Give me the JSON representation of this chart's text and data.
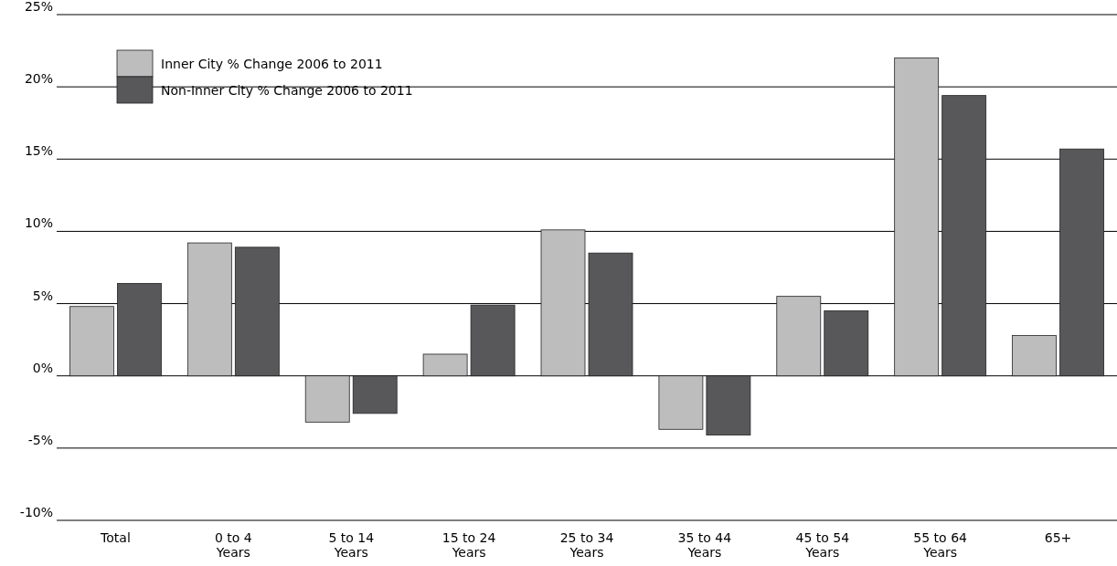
{
  "chart_data": {
    "type": "bar",
    "categories": [
      "Total",
      "0 to 4\nYears",
      "5 to 14\nYears",
      "15 to 24\nYears",
      "25 to 34\nYears",
      "35 to 44\nYears",
      "45 to 54\nYears",
      "55 to 64\nYears",
      "65+"
    ],
    "series": [
      {
        "name": "Inner City % Change 2006 to 2011",
        "color": "#bdbdbd",
        "values": [
          4.8,
          9.2,
          -3.2,
          1.5,
          10.1,
          -3.7,
          5.5,
          22.0,
          2.8
        ]
      },
      {
        "name": "Non-Inner City % Change 2006 to 2011",
        "color": "#58585a",
        "values": [
          6.4,
          8.9,
          -2.6,
          4.9,
          8.5,
          -4.1,
          4.5,
          19.4,
          15.7
        ]
      }
    ],
    "ylim": [
      -10,
      25
    ],
    "yticks": [
      {
        "value": -10,
        "label": "-10%"
      },
      {
        "value": -5,
        "label": "-5%"
      },
      {
        "value": 0,
        "label": "0%"
      },
      {
        "value": 5,
        "label": "5%"
      },
      {
        "value": 10,
        "label": "10%"
      },
      {
        "value": 15,
        "label": "15%"
      },
      {
        "value": 20,
        "label": "20%"
      },
      {
        "value": 25,
        "label": "25%"
      }
    ],
    "grid": "y",
    "legend": "top left"
  }
}
